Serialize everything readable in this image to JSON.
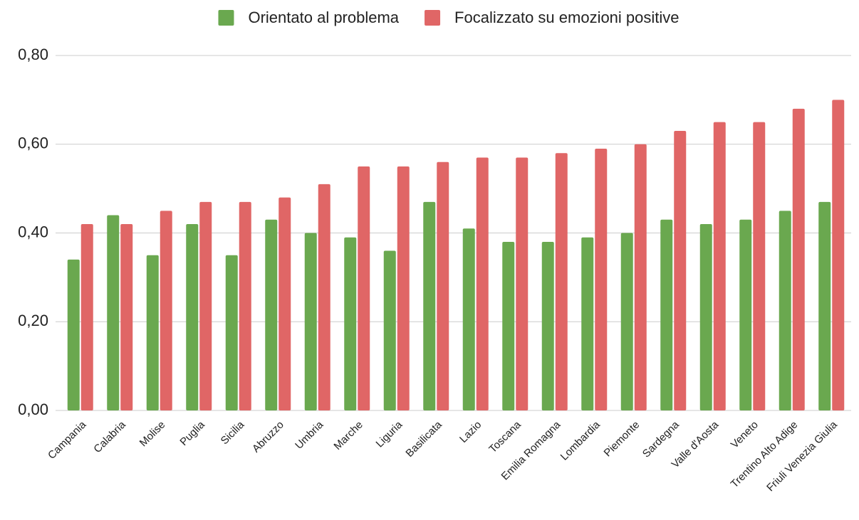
{
  "chart_data": {
    "type": "bar",
    "categories": [
      "Campania",
      "Calabria",
      "Molise",
      "Puglia",
      "Sicilia",
      "Abruzzo",
      "Umbria",
      "Marche",
      "Liguria",
      "Basilicata",
      "Lazio",
      "Toscana",
      "Emilia Romagna",
      "Lombardia",
      "Piemonte",
      "Sardegna",
      "Valle d'Aosta",
      "Veneto",
      "Trentino Alto Adige",
      "Friuli Venezia Giulia"
    ],
    "series": [
      {
        "name": "Orientato al problema",
        "color": "#6aa84f",
        "values": [
          0.34,
          0.44,
          0.35,
          0.42,
          0.35,
          0.43,
          0.4,
          0.39,
          0.36,
          0.47,
          0.41,
          0.38,
          0.38,
          0.39,
          0.4,
          0.43,
          0.42,
          0.43,
          0.45,
          0.47
        ]
      },
      {
        "name": "Focalizzato su emozioni positive",
        "color": "#e06666",
        "values": [
          0.42,
          0.42,
          0.45,
          0.47,
          0.47,
          0.48,
          0.51,
          0.55,
          0.55,
          0.56,
          0.57,
          0.57,
          0.58,
          0.59,
          0.6,
          0.63,
          0.65,
          0.65,
          0.68,
          0.7
        ]
      }
    ],
    "ylim": [
      0,
      0.8
    ],
    "yticks": [
      {
        "value": 0,
        "label": "0,00"
      },
      {
        "value": 0.2,
        "label": "0,20"
      },
      {
        "value": 0.4,
        "label": "0,40"
      },
      {
        "value": 0.6,
        "label": "0,60"
      },
      {
        "value": 0.8,
        "label": "0,80"
      }
    ],
    "grid": true,
    "legend": "top"
  }
}
